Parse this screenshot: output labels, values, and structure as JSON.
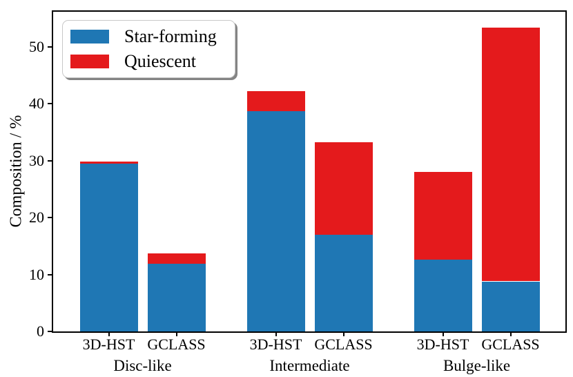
{
  "chart_data": {
    "type": "bar",
    "stacked": true,
    "title": "",
    "ylabel": "Composition / %",
    "xlabel": "",
    "ylim": [
      0,
      56.2
    ],
    "yticks": [
      0,
      10,
      20,
      30,
      40,
      50
    ],
    "grid": false,
    "legend_position": "upper-left",
    "groups": [
      "Disc-like",
      "Intermediate",
      "Bulge-like"
    ],
    "bar_labels": [
      "3D-HST",
      "GCLASS"
    ],
    "series": [
      {
        "name": "Star-forming",
        "color": "#1f77b4",
        "values": [
          29.5,
          11.9,
          38.7,
          17.0,
          12.6,
          8.8
        ]
      },
      {
        "name": "Quiescent",
        "color": "#e41a1c",
        "values": [
          0.4,
          1.8,
          3.5,
          16.2,
          15.4,
          44.6
        ]
      }
    ]
  },
  "colors": {
    "axis": "#000000",
    "background": "#ffffff",
    "legend_border": "#c8c8c8"
  }
}
